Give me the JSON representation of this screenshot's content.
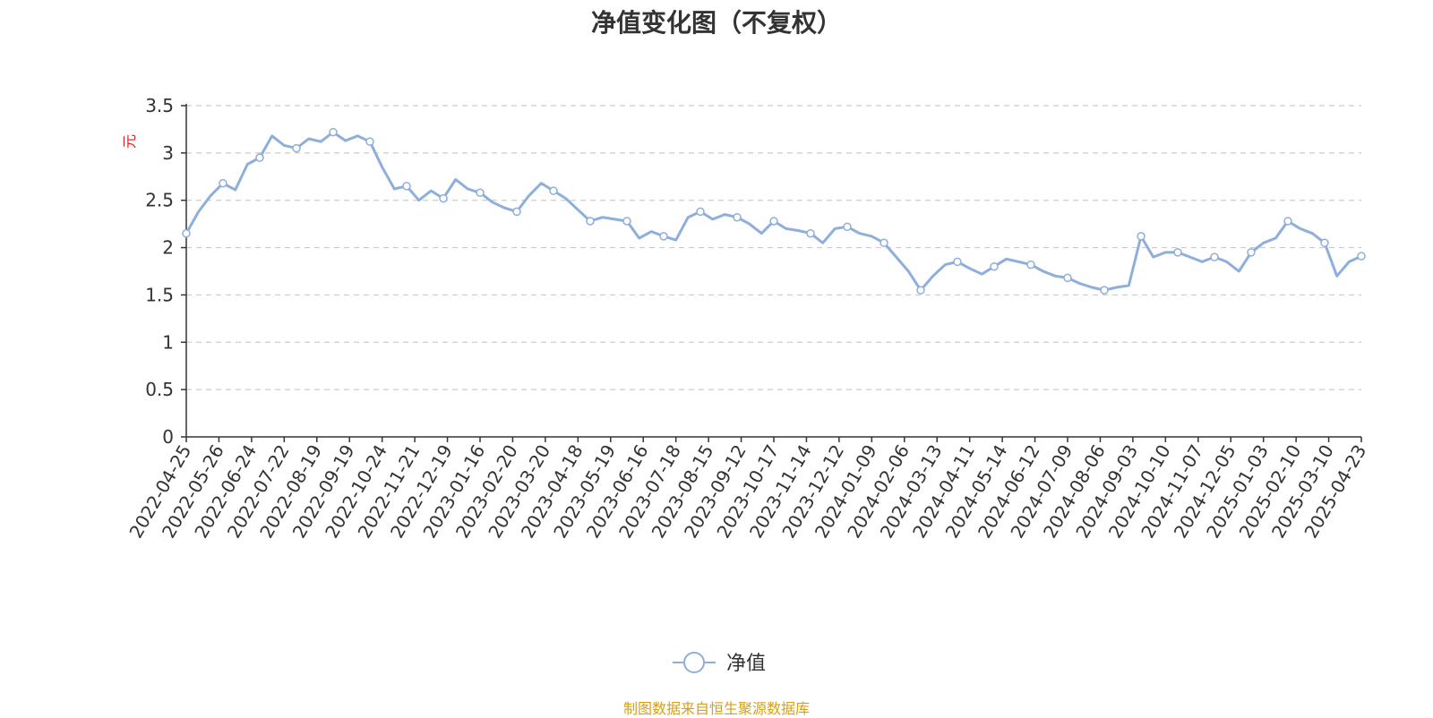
{
  "chart_data": {
    "type": "line",
    "title": "净值变化图（不复权）",
    "ylabel": "元",
    "xlabel": "",
    "ylim": [
      0,
      3.5
    ],
    "y_ticks": [
      "0",
      "0.5",
      "1",
      "1.5",
      "2",
      "2.5",
      "3",
      "3.5"
    ],
    "x_tick_labels": [
      "2022-04-25",
      "2022-05-26",
      "2022-06-24",
      "2022-07-22",
      "2022-08-19",
      "2022-09-19",
      "2022-10-24",
      "2022-11-21",
      "2022-12-19",
      "2023-01-16",
      "2023-02-20",
      "2023-03-20",
      "2023-04-18",
      "2023-05-19",
      "2023-06-16",
      "2023-07-18",
      "2023-08-15",
      "2023-09-12",
      "2023-10-17",
      "2023-11-14",
      "2023-12-12",
      "2024-01-09",
      "2024-02-06",
      "2024-03-13",
      "2024-04-11",
      "2024-05-14",
      "2024-06-12",
      "2024-07-09",
      "2024-08-06",
      "2024-09-03",
      "2024-10-10",
      "2024-11-07",
      "2024-12-05",
      "2025-01-03",
      "2025-02-10",
      "2025-03-10",
      "2025-04-23"
    ],
    "grid": "horizontal-dashed",
    "legend_position": "bottom-center",
    "series": [
      {
        "name": "净值",
        "color": "#8eaedc",
        "values": [
          2.15,
          2.38,
          2.55,
          2.68,
          2.61,
          2.88,
          2.95,
          3.18,
          3.08,
          3.05,
          3.15,
          3.12,
          3.22,
          3.13,
          3.18,
          3.12,
          2.85,
          2.62,
          2.65,
          2.5,
          2.6,
          2.52,
          2.72,
          2.62,
          2.58,
          2.48,
          2.42,
          2.38,
          2.55,
          2.68,
          2.6,
          2.52,
          2.4,
          2.28,
          2.32,
          2.3,
          2.28,
          2.1,
          2.17,
          2.12,
          2.08,
          2.32,
          2.38,
          2.3,
          2.35,
          2.32,
          2.25,
          2.15,
          2.28,
          2.2,
          2.18,
          2.15,
          2.05,
          2.2,
          2.22,
          2.15,
          2.12,
          2.05,
          1.9,
          1.75,
          1.55,
          1.7,
          1.82,
          1.85,
          1.78,
          1.72,
          1.8,
          1.88,
          1.85,
          1.82,
          1.75,
          1.7,
          1.68,
          1.62,
          1.58,
          1.55,
          1.58,
          1.6,
          2.12,
          1.9,
          1.95,
          1.95,
          1.9,
          1.85,
          1.9,
          1.85,
          1.75,
          1.95,
          2.05,
          2.1,
          2.28,
          2.2,
          2.15,
          2.05,
          1.7,
          1.85,
          1.91
        ]
      }
    ]
  },
  "source_note": "制图数据来自恒生聚源数据库"
}
